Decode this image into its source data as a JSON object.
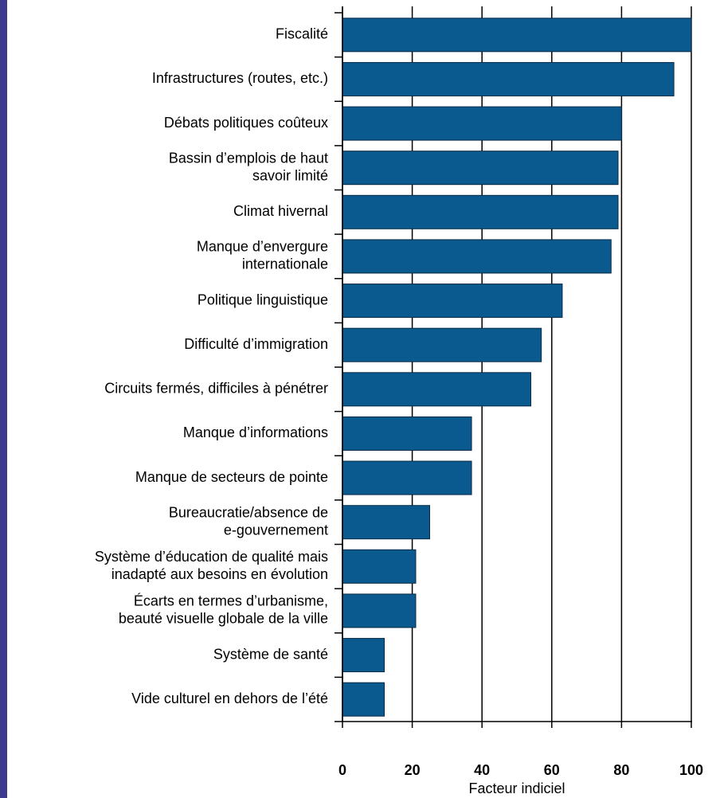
{
  "chart_data": {
    "type": "bar",
    "orientation": "horizontal",
    "x_label": "Facteur indiciel",
    "categories": [
      [
        "Fiscalité"
      ],
      [
        "Infrastructures (routes, etc.)"
      ],
      [
        "Débats politiques coûteux"
      ],
      [
        "Bassin d’emplois de haut",
        "savoir limité"
      ],
      [
        "Climat hivernal"
      ],
      [
        "Manque d’envergure",
        "internationale"
      ],
      [
        "Politique linguistique"
      ],
      [
        "Difficulté d’immigration"
      ],
      [
        "Circuits fermés, difficiles à pénétrer"
      ],
      [
        "Manque d’informations"
      ],
      [
        "Manque de secteurs de pointe"
      ],
      [
        "Bureaucratie/absence de",
        "e-gouvernement"
      ],
      [
        "Système d’éducation de qualité mais",
        "inadapté aux besoins en évolution"
      ],
      [
        "Écarts en termes d’urbanisme,",
        "beauté visuelle globale de la ville"
      ],
      [
        "Système de santé"
      ],
      [
        "Vide culturel en dehors de l’été"
      ]
    ],
    "values": [
      100,
      95,
      80,
      79,
      79,
      77,
      63,
      57,
      54,
      37,
      37,
      25,
      21,
      21,
      12,
      12
    ],
    "color": "#0a5a8f",
    "xlim": [
      0,
      100
    ],
    "xticks": [
      0,
      20,
      40,
      60,
      80,
      100
    ],
    "grid": true
  }
}
